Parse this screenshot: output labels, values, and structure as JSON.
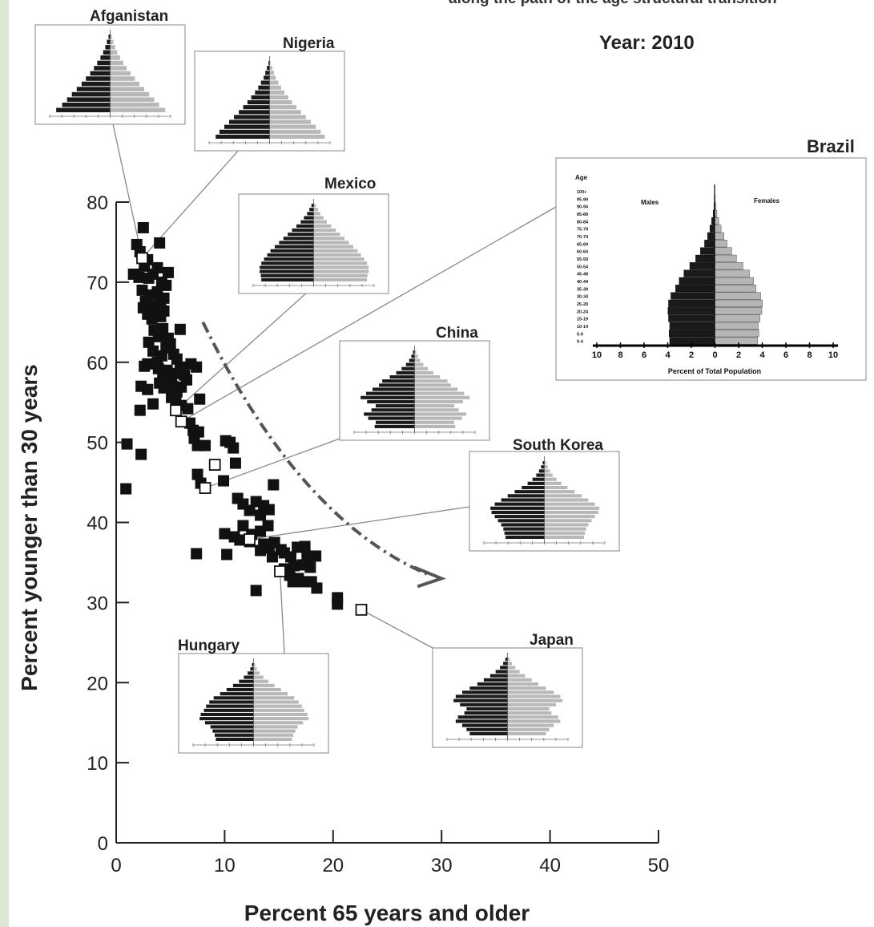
{
  "title_text": "along the path of the age structural transition",
  "year_text": "Year:  2010",
  "chart_data": {
    "type": "scatter",
    "xlabel": "Percent 65 years and older",
    "ylabel": "Percent younger than 30 years",
    "xlim": [
      0,
      50
    ],
    "ylim": [
      0,
      80
    ],
    "xticks": [
      0,
      10,
      20,
      30,
      40,
      50
    ],
    "yticks": [
      0,
      10,
      20,
      30,
      40,
      50,
      60,
      70,
      80
    ],
    "grid": false,
    "arrow": {
      "from": [
        8,
        65
      ],
      "via": [
        20,
        44
      ],
      "to": [
        30,
        33
      ]
    },
    "series": [
      {
        "marker": "filled-square",
        "color": "#111111",
        "points": [
          [
            2.5,
            76.8
          ],
          [
            1.9,
            74.7
          ],
          [
            2.2,
            73.8
          ],
          [
            2.9,
            72.8
          ],
          [
            4.0,
            74.9
          ],
          [
            1.6,
            71.0
          ],
          [
            2.1,
            70.6
          ],
          [
            2.6,
            72.0
          ],
          [
            3.0,
            70.5
          ],
          [
            3.4,
            71.0
          ],
          [
            3.8,
            71.8
          ],
          [
            4.2,
            70.0
          ],
          [
            4.6,
            69.6
          ],
          [
            4.8,
            71.2
          ],
          [
            2.4,
            69.0
          ],
          [
            2.7,
            67.6
          ],
          [
            3.1,
            68.4
          ],
          [
            3.4,
            67.0
          ],
          [
            3.8,
            68.8
          ],
          [
            4.1,
            67.6
          ],
          [
            4.4,
            68.0
          ],
          [
            2.5,
            66.8
          ],
          [
            2.9,
            66.0
          ],
          [
            3.3,
            65.4
          ],
          [
            3.7,
            66.3
          ],
          [
            4.1,
            65.7
          ],
          [
            4.4,
            66.4
          ],
          [
            3.5,
            64.0
          ],
          [
            3.9,
            63.2
          ],
          [
            4.3,
            64.2
          ],
          [
            4.8,
            63.0
          ],
          [
            5.9,
            64.1
          ],
          [
            3.0,
            62.5
          ],
          [
            3.4,
            61.4
          ],
          [
            3.8,
            60.0
          ],
          [
            4.2,
            60.8
          ],
          [
            4.6,
            61.8
          ],
          [
            5.0,
            62.3
          ],
          [
            5.3,
            61.0
          ],
          [
            5.6,
            60.4
          ],
          [
            3.9,
            59.2
          ],
          [
            4.3,
            58.5
          ],
          [
            4.7,
            59.0
          ],
          [
            5.1,
            58.3
          ],
          [
            5.5,
            58.6
          ],
          [
            5.9,
            59.4
          ],
          [
            6.3,
            58.4
          ],
          [
            4.0,
            57.4
          ],
          [
            4.4,
            56.8
          ],
          [
            4.8,
            57.5
          ],
          [
            5.2,
            57.0
          ],
          [
            5.6,
            56.3
          ],
          [
            6.0,
            56.9
          ],
          [
            6.5,
            57.8
          ],
          [
            6.9,
            59.8
          ],
          [
            7.4,
            59.4
          ],
          [
            5.1,
            55.6
          ],
          [
            5.5,
            55.1
          ],
          [
            6.0,
            54.6
          ],
          [
            6.6,
            54.2
          ],
          [
            7.7,
            55.4
          ],
          [
            6.8,
            52.4
          ],
          [
            7.1,
            51.5
          ],
          [
            7.2,
            50.5
          ],
          [
            7.6,
            51.3
          ],
          [
            7.5,
            49.6
          ],
          [
            8.2,
            49.6
          ],
          [
            2.3,
            57.0
          ],
          [
            2.2,
            54.0
          ],
          [
            2.6,
            59.5
          ],
          [
            3.4,
            54.8
          ],
          [
            2.9,
            59.8
          ],
          [
            2.9,
            56.6
          ],
          [
            1.0,
            49.8
          ],
          [
            2.3,
            48.5
          ],
          [
            0.9,
            44.2
          ],
          [
            7.5,
            46.0
          ],
          [
            7.8,
            44.9
          ],
          [
            9.9,
            45.2
          ],
          [
            10.1,
            50.2
          ],
          [
            10.8,
            49.3
          ],
          [
            10.5,
            50.0
          ],
          [
            11.0,
            47.4
          ],
          [
            11.2,
            43.0
          ],
          [
            11.7,
            42.3
          ],
          [
            12.3,
            41.5
          ],
          [
            12.9,
            42.6
          ],
          [
            13.3,
            40.9
          ],
          [
            13.6,
            42.1
          ],
          [
            14.1,
            41.6
          ],
          [
            14.5,
            44.7
          ],
          [
            14.0,
            39.6
          ],
          [
            11.7,
            39.6
          ],
          [
            12.5,
            38.5
          ],
          [
            13.3,
            38.9
          ],
          [
            11.4,
            37.8
          ],
          [
            12.3,
            37.6
          ],
          [
            13.6,
            37.3
          ],
          [
            10.0,
            38.6
          ],
          [
            10.9,
            38.2
          ],
          [
            13.3,
            36.5
          ],
          [
            14.1,
            36.8
          ],
          [
            14.6,
            37.5
          ],
          [
            15.2,
            36.6
          ],
          [
            15.5,
            36.2
          ],
          [
            16.1,
            35.7
          ],
          [
            16.7,
            36.9
          ],
          [
            17.4,
            37.0
          ],
          [
            17.6,
            35.7
          ],
          [
            18.4,
            35.8
          ],
          [
            14.4,
            35.7
          ],
          [
            15.5,
            34.2
          ],
          [
            16.4,
            34.6
          ],
          [
            17.2,
            34.7
          ],
          [
            17.9,
            34.4
          ],
          [
            16.0,
            33.4
          ],
          [
            16.8,
            33.0
          ],
          [
            17.3,
            32.6
          ],
          [
            16.3,
            32.6
          ],
          [
            18.0,
            32.6
          ],
          [
            18.5,
            31.8
          ],
          [
            12.9,
            31.5
          ],
          [
            20.4,
            30.6
          ],
          [
            20.4,
            29.8
          ],
          [
            10.2,
            36.0
          ],
          [
            7.4,
            36.1
          ]
        ]
      },
      {
        "marker": "open-square",
        "color": "#111111",
        "points": [
          [
            2.4,
            73.0
          ],
          [
            5.5,
            54.0
          ],
          [
            6.0,
            52.6
          ],
          [
            8.2,
            44.3
          ],
          [
            9.1,
            47.2
          ],
          [
            12.3,
            37.9
          ],
          [
            15.1,
            33.9
          ],
          [
            22.6,
            29.1
          ]
        ]
      }
    ],
    "annotations": [
      {
        "label": "Afganistan",
        "x": 2.4,
        "y": 73.0
      },
      {
        "label": "Nigeria",
        "x": 2.4,
        "y": 73.0
      },
      {
        "label": "Mexico",
        "x": 5.5,
        "y": 54.0
      },
      {
        "label": "Brazil",
        "x": 6.0,
        "y": 52.6
      },
      {
        "label": "China",
        "x": 8.2,
        "y": 44.3
      },
      {
        "label": "South Korea",
        "x": 12.3,
        "y": 37.9
      },
      {
        "label": "Hungary",
        "x": 15.1,
        "y": 33.9
      },
      {
        "label": "Japan",
        "x": 22.6,
        "y": 29.1
      }
    ]
  },
  "inset_pyramids": [
    {
      "name": "Afganistan",
      "shape": [
        0.03,
        0.06,
        0.09,
        0.13,
        0.18,
        0.24,
        0.3,
        0.37,
        0.45,
        0.53,
        0.62,
        0.71,
        0.8,
        0.89,
        1.0
      ]
    },
    {
      "name": "Nigeria",
      "shape": [
        0.02,
        0.05,
        0.08,
        0.11,
        0.16,
        0.21,
        0.27,
        0.34,
        0.41,
        0.49,
        0.57,
        0.66,
        0.75,
        0.84,
        0.93,
        1.0
      ]
    },
    {
      "name": "Mexico",
      "shape": [
        0.04,
        0.08,
        0.12,
        0.18,
        0.24,
        0.32,
        0.4,
        0.48,
        0.56,
        0.64,
        0.72,
        0.8,
        0.86,
        0.92,
        0.97,
        1.0,
        1.0,
        0.98,
        0.97
      ]
    },
    {
      "name": "China",
      "shape": [
        0.03,
        0.06,
        0.1,
        0.16,
        0.24,
        0.34,
        0.46,
        0.6,
        0.66,
        0.78,
        0.9,
        1.0,
        0.88,
        0.72,
        0.8,
        0.94,
        0.86,
        0.72,
        0.74
      ]
    },
    {
      "name": "South Korea",
      "shape": [
        0.03,
        0.06,
        0.1,
        0.15,
        0.22,
        0.31,
        0.42,
        0.55,
        0.68,
        0.8,
        0.92,
        1.0,
        0.98,
        0.92,
        0.86,
        0.8,
        0.76,
        0.74,
        0.72
      ]
    },
    {
      "name": "Hungary",
      "shape": [
        0.03,
        0.06,
        0.11,
        0.18,
        0.27,
        0.38,
        0.5,
        0.62,
        0.74,
        0.82,
        0.88,
        0.92,
        0.98,
        1.0,
        0.9,
        0.8,
        0.76,
        0.72,
        0.7
      ]
    },
    {
      "name": "Japan",
      "shape": [
        0.04,
        0.08,
        0.14,
        0.22,
        0.32,
        0.44,
        0.56,
        0.7,
        0.84,
        0.96,
        1.0,
        0.88,
        0.76,
        0.8,
        0.92,
        0.96,
        0.84,
        0.76,
        0.7
      ]
    }
  ],
  "brazil_inset": {
    "name": "Brazil",
    "age_label": "Age",
    "males_label": "Males",
    "females_label": "Females",
    "xlabel": "Percent of Total Population",
    "xticks": [
      "10",
      "8",
      "6",
      "4",
      "2",
      "0",
      "2",
      "4",
      "6",
      "8",
      "10"
    ],
    "age_groups": [
      "100+",
      "95-99",
      "90-94",
      "85-89",
      "80-84",
      "75-79",
      "70-74",
      "65-69",
      "60-64",
      "55-59",
      "50-54",
      "45-49",
      "40-44",
      "35-39",
      "30-34",
      "25-29",
      "20-24",
      "15-19",
      "10-14",
      "5-9",
      "0-4"
    ],
    "males": [
      0.01,
      0.02,
      0.05,
      0.12,
      0.25,
      0.4,
      0.6,
      0.85,
      1.2,
      1.6,
      2.1,
      2.6,
      3.0,
      3.3,
      3.7,
      3.9,
      3.95,
      3.9,
      3.8,
      3.85,
      3.8
    ],
    "females": [
      0.02,
      0.05,
      0.1,
      0.2,
      0.35,
      0.55,
      0.8,
      1.05,
      1.45,
      1.85,
      2.4,
      2.95,
      3.3,
      3.5,
      3.9,
      4.05,
      4.0,
      3.85,
      3.7,
      3.75,
      3.65
    ]
  }
}
